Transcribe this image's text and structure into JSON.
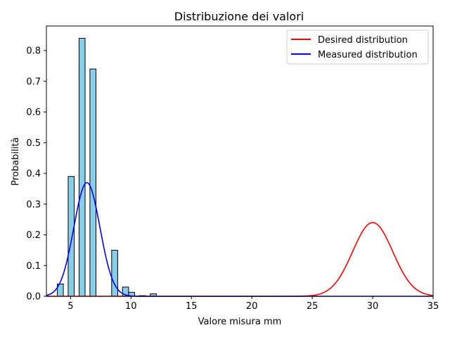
{
  "chart_data": {
    "type": "bar",
    "title": "Distribuzione dei valori",
    "xlabel": "Valore misura mm",
    "ylabel": "Probabilità",
    "xlim": [
      3,
      35
    ],
    "ylim": [
      0,
      0.88
    ],
    "xticks": [
      5,
      10,
      15,
      20,
      25,
      30,
      35
    ],
    "yticks": [
      0.0,
      0.1,
      0.2,
      0.3,
      0.4,
      0.5,
      0.6,
      0.7,
      0.8
    ],
    "xtick_labels": [
      "5",
      "10",
      "15",
      "20",
      "25",
      "30",
      "35"
    ],
    "ytick_labels": [
      "0.0",
      "0.1",
      "0.2",
      "0.3",
      "0.4",
      "0.5",
      "0.6",
      "0.7",
      "0.8"
    ],
    "grid": false,
    "legend_position": "top-right",
    "histogram": {
      "bar_fill": "#87ceeb",
      "bar_edge": "#000000",
      "bins": [
        {
          "x0": 3.9,
          "x1": 4.4,
          "value": 0.04
        },
        {
          "x0": 4.8,
          "x1": 5.3,
          "value": 0.39
        },
        {
          "x0": 5.7,
          "x1": 6.2,
          "value": 0.84
        },
        {
          "x0": 6.6,
          "x1": 7.1,
          "value": 0.74
        },
        {
          "x0": 8.4,
          "x1": 8.9,
          "value": 0.15
        },
        {
          "x0": 9.3,
          "x1": 9.8,
          "value": 0.03
        },
        {
          "x0": 9.8,
          "x1": 10.3,
          "value": 0.013
        },
        {
          "x0": 10.7,
          "x1": 11.2,
          "value": 0.002
        },
        {
          "x0": 11.6,
          "x1": 12.1,
          "value": 0.008
        }
      ]
    },
    "series": [
      {
        "name": "Desired distribution",
        "color": "#ff0000",
        "curve": "normal",
        "mean": 30,
        "sd": 1.66,
        "peak": 0.24
      },
      {
        "name": "Measured distribution",
        "color": "#0000ff",
        "curve": "normal",
        "mean": 6.35,
        "sd": 1.08,
        "peak": 0.37
      }
    ]
  }
}
